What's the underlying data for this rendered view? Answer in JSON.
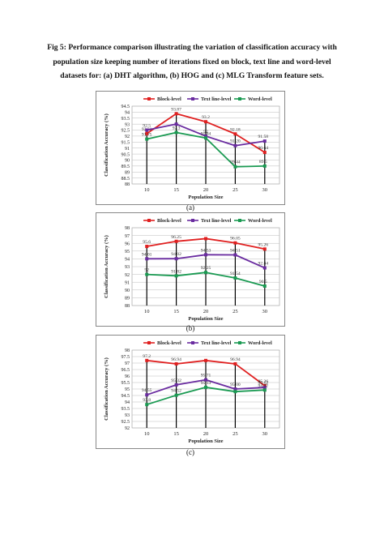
{
  "caption": {
    "line1": "Fig 5: Performance comparison illustrating the variation of classification accuracy with",
    "line2": "population size keeping number of iterations fixed on block, text line and word-level",
    "line3": "datasets for: (a) DHT algorithm, (b) HOG and (c) MLG Transform feature sets."
  },
  "colors": {
    "block": "#e02020",
    "textline": "#6a2ca0",
    "word": "#1a9a52"
  },
  "chart_data": [
    {
      "type": "line",
      "panel_label": "(a)",
      "xlabel": "Population Size",
      "ylabel": "Classification Accuracy (%)",
      "categories": [
        "10",
        "15",
        "20",
        "25",
        "30"
      ],
      "ylim": [
        88,
        94.5
      ],
      "yticks": [
        "88",
        "88.5",
        "89",
        "89.5",
        "90",
        "90.5",
        "91",
        "91.5",
        "92",
        "92.5",
        "93",
        "93.5",
        "94",
        "94.5"
      ],
      "series": [
        {
          "name": "Block-level",
          "key": "block",
          "values": [
            92.21,
            93.87,
            93.2,
            92.18,
            90.64
          ],
          "labels": [
            "92.21",
            "93.87",
            "93.2",
            "92.18",
            "90.64"
          ]
        },
        {
          "name": "Text line-level",
          "key": "textline",
          "values": [
            92.5,
            93,
            92,
            91.2,
            91.58
          ],
          "labels": [
            "92.5",
            "",
            "92",
            "91.20",
            "91.58"
          ]
        },
        {
          "name": "Word-level",
          "key": "word",
          "values": [
            91.75,
            92.3,
            91.84,
            89.44,
            89.5
          ],
          "labels": [
            "91.75",
            "92.3",
            "91.84",
            "89.44",
            "89.5"
          ]
        }
      ]
    },
    {
      "type": "line",
      "panel_label": "(b)",
      "xlabel": "Population Size",
      "ylabel": "Classification Accuracy (%)",
      "categories": [
        "10",
        "15",
        "20",
        "25",
        "30"
      ],
      "ylim": [
        88,
        98
      ],
      "yticks": [
        "88",
        "89",
        "90",
        "91",
        "92",
        "93",
        "94",
        "95",
        "96",
        "97",
        "98"
      ],
      "series": [
        {
          "name": "Block-level",
          "key": "block",
          "values": [
            95.6,
            96.25,
            96.6,
            96.05,
            95.26
          ],
          "labels": [
            "95.6",
            "96.25",
            "",
            "96.05",
            "95.26"
          ]
        },
        {
          "name": "Text line-level",
          "key": "textline",
          "values": [
            94.01,
            94.02,
            94.53,
            94.51,
            92.84
          ],
          "labels": [
            "94.01",
            "94.02",
            "94.53",
            "94.51",
            "92.84"
          ]
        },
        {
          "name": "Word-level",
          "key": "word",
          "values": [
            92,
            91.82,
            92.25,
            91.54,
            90.5
          ],
          "labels": [
            "92",
            "91.82",
            "92.25",
            "91.54",
            "90.5"
          ]
        }
      ]
    },
    {
      "type": "line",
      "panel_label": "(c)",
      "xlabel": "Population Size",
      "ylabel": "Classification Accuracy (%)",
      "categories": [
        "10",
        "15",
        "20",
        "25",
        "30"
      ],
      "ylim": [
        92,
        98
      ],
      "yticks": [
        "92",
        "92.5",
        "93",
        "93.5",
        "94",
        "94.5",
        "95",
        "95.5",
        "96",
        "96.5",
        "97",
        "97.5",
        "98"
      ],
      "series": [
        {
          "name": "Block-level",
          "key": "block",
          "values": [
            97.2,
            96.94,
            97.2,
            96.94,
            95.26
          ],
          "labels": [
            "97.2",
            "96.94",
            "",
            "96.94",
            "95.26"
          ]
        },
        {
          "name": "Text line-level",
          "key": "textline",
          "values": [
            94.55,
            95.32,
            95.71,
            95,
            95.12
          ],
          "labels": [
            "94.55",
            "95.32",
            "95.71",
            "95.00",
            "95.12"
          ]
        },
        {
          "name": "Word-level",
          "key": "word",
          "values": [
            93.8,
            94.52,
            95.13,
            94.8,
            94.92
          ],
          "labels": [
            "93.8",
            "94.52",
            "95.13",
            "",
            "94.92"
          ]
        }
      ]
    }
  ]
}
